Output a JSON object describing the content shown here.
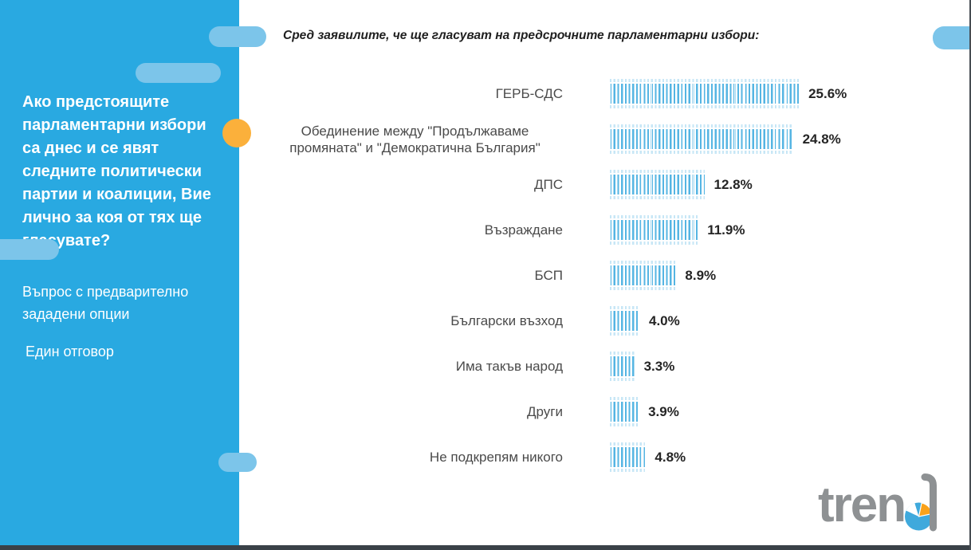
{
  "sidebar": {
    "question": "Ако предстоящите парламентарни избори са днес и се явят следните политически партии и коалиции, Вие лично за коя от тях ще гласувате?",
    "note1": "Въпрос с предварително зададени опции",
    "note2": "Един отговор",
    "bg_color": "#29a9e1",
    "pill_color": "#7cc5ea",
    "accent_dot_color": "#fbb03b"
  },
  "main": {
    "title": "Сред заявилите, че ще гласуват на предсрочните парламентарни избори:"
  },
  "chart_data": {
    "type": "bar",
    "orientation": "horizontal",
    "title": "Сред заявилите, че ще гласуват на предсрочните парламентарни избори:",
    "categories": [
      "ГЕРБ-СДС",
      "Обединение между \"Продължаваме промяната\" и \"Демократична България\"",
      "ДПС",
      "Възраждане",
      "БСП",
      "Български възход",
      "Има такъв народ",
      "Други",
      "Не подкрепям никого"
    ],
    "values": [
      25.6,
      24.8,
      12.8,
      11.9,
      8.9,
      4.0,
      3.3,
      3.9,
      4.8
    ],
    "display_values": [
      "25.6%",
      "24.8%",
      "12.8%",
      "11.9%",
      "8.9%",
      "4.0%",
      "3.3%",
      "3.9%",
      "4.8%"
    ],
    "xlabel": "",
    "ylabel": "",
    "xlim": [
      0,
      27
    ],
    "grid": false,
    "legend": false,
    "axis_ticks": "none",
    "bar_style": "vertical-striped",
    "bar_color": "#55b5e3",
    "value_label_color": "#252525",
    "category_label_color": "#4a4a4a"
  },
  "logo": {
    "text": "trend",
    "text_part": "tren",
    "color": "#8e9193",
    "pie_blue": "#3fa9dc",
    "pie_orange": "#f9a21b"
  }
}
